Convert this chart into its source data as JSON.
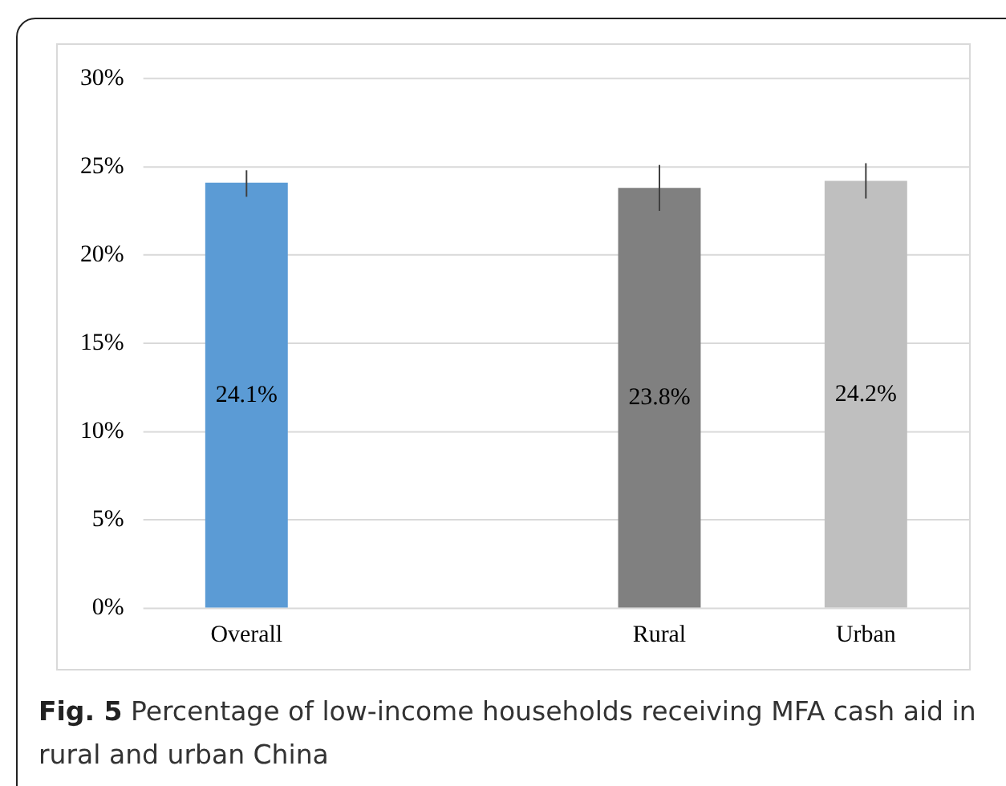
{
  "chart_data": {
    "type": "bar",
    "title": "Fig. 5",
    "subtitle": "Percentage of low-income households receiving MFA cash aid in rural and urban China",
    "categories": [
      "Overall",
      null,
      "Rural",
      "Urban"
    ],
    "values": [
      24.1,
      null,
      23.8,
      24.2
    ],
    "colors": [
      "#5b9bd5",
      "#808080",
      "#808080",
      "#bfbfbf"
    ],
    "errors": [
      [
        23.3,
        24.8
      ],
      null,
      [
        22.5,
        25.1
      ],
      [
        23.2,
        25.2
      ]
    ],
    "value_labels": [
      "24.1%",
      null,
      "23.8%",
      "24.2%"
    ],
    "ylim": [
      0,
      30
    ],
    "yticks": [
      {
        "value": 0,
        "label": "0%"
      },
      {
        "value": 5,
        "label": "5%"
      },
      {
        "value": 10,
        "label": "10%"
      },
      {
        "value": 15,
        "label": "15%"
      },
      {
        "value": 20,
        "label": "20%"
      },
      {
        "value": 25,
        "label": "25%"
      },
      {
        "value": 30,
        "label": "30%"
      }
    ],
    "grid": "y",
    "legend": false
  }
}
